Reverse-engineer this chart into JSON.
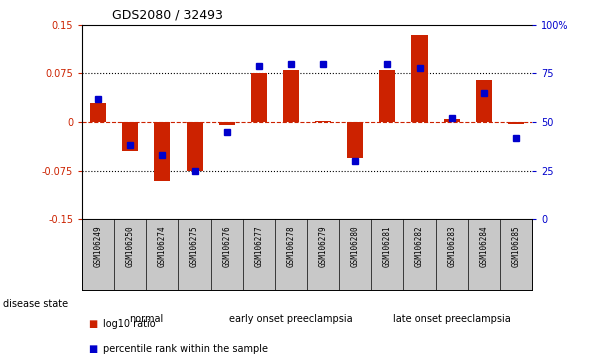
{
  "title": "GDS2080 / 32493",
  "samples": [
    "GSM106249",
    "GSM106250",
    "GSM106274",
    "GSM106275",
    "GSM106276",
    "GSM106277",
    "GSM106278",
    "GSM106279",
    "GSM106280",
    "GSM106281",
    "GSM106282",
    "GSM106283",
    "GSM106284",
    "GSM106285"
  ],
  "log10_ratio": [
    0.03,
    -0.045,
    -0.09,
    -0.075,
    -0.005,
    0.075,
    0.08,
    0.002,
    -0.055,
    0.08,
    0.135,
    0.005,
    0.065,
    -0.003
  ],
  "percentile_rank": [
    62,
    38,
    33,
    25,
    45,
    79,
    80,
    80,
    30,
    80,
    78,
    52,
    65,
    42
  ],
  "groups": [
    {
      "label": "normal",
      "start": 0,
      "end": 4,
      "color": "#d0f0d0"
    },
    {
      "label": "early onset preeclampsia",
      "start": 4,
      "end": 9,
      "color": "#90e090"
    },
    {
      "label": "late onset preeclampsia",
      "start": 9,
      "end": 14,
      "color": "#40c840"
    }
  ],
  "ylim_left": [
    -0.15,
    0.15
  ],
  "ylim_right": [
    0,
    100
  ],
  "yticks_left": [
    -0.15,
    -0.075,
    0,
    0.075,
    0.15
  ],
  "yticks_right": [
    0,
    25,
    50,
    75,
    100
  ],
  "ytick_labels_left": [
    "-0.15",
    "-0.075",
    "0",
    "0.075",
    "0.15"
  ],
  "ytick_labels_right": [
    "0",
    "25",
    "50",
    "75",
    "100%"
  ],
  "hlines": [
    0.075,
    -0.075
  ],
  "bar_color_red": "#cc2200",
  "bar_color_blue": "#0000cc",
  "sample_bg": "#c8c8c8",
  "legend_label_red": "log10 ratio",
  "legend_label_blue": "percentile rank within the sample",
  "disease_state_label": "disease state",
  "bar_width": 0.5
}
